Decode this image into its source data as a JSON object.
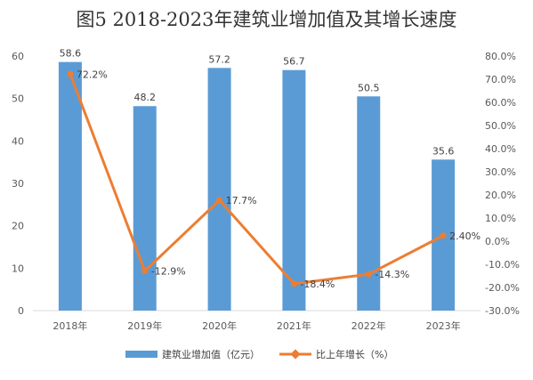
{
  "chart_data": {
    "type": "bar",
    "title": "图5   2018-2023年建筑业增加值及其增长速度",
    "categories": [
      "2018年",
      "2019年",
      "2020年",
      "2021年",
      "2022年",
      "2023年"
    ],
    "series": [
      {
        "name": "建筑业增加值（亿元）",
        "type": "bar",
        "axis": "left",
        "color": "#5b9bd5",
        "values": [
          58.6,
          48.2,
          57.2,
          56.7,
          50.5,
          35.6
        ],
        "labels": [
          "58.6",
          "48.2",
          "57.2",
          "56.7",
          "50.5",
          "35.6"
        ]
      },
      {
        "name": "比上年增长（%）",
        "type": "line",
        "axis": "right",
        "color": "#ed7d31",
        "values": [
          72.2,
          -12.9,
          17.7,
          -18.4,
          -14.3,
          2.4
        ],
        "labels": [
          "72.2%",
          "-12.9%",
          "17.7%",
          "-18.4%",
          "-14.3%",
          "2.40%"
        ]
      }
    ],
    "ylim_left": [
      0,
      60
    ],
    "yticks_left": [
      "0",
      "10",
      "20",
      "30",
      "40",
      "50",
      "60"
    ],
    "ylim_right": [
      -30,
      80
    ],
    "yticks_right": [
      "-30.0%",
      "-20.0%",
      "-10.0%",
      "0.0%",
      "10.0%",
      "20.0%",
      "30.0%",
      "40.0%",
      "50.0%",
      "60.0%",
      "70.0%",
      "80.0%"
    ],
    "grid": false,
    "legend_position": "bottom"
  }
}
